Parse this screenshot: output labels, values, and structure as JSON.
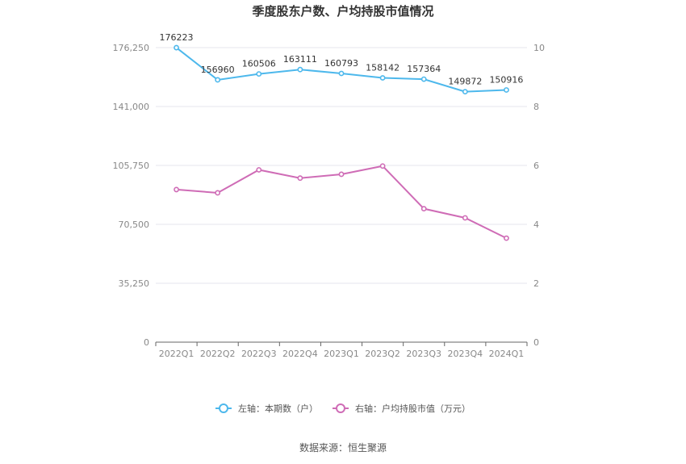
{
  "chart_data": {
    "type": "line",
    "title": "季度股东户数、户均持股市值情况",
    "categories": [
      "2022Q1",
      "2022Q2",
      "2022Q3",
      "2022Q4",
      "2023Q1",
      "2023Q2",
      "2023Q3",
      "2023Q4",
      "2024Q1"
    ],
    "left_axis": {
      "ticks": [
        "0",
        "35,250",
        "70,500",
        "105,750",
        "141,000",
        "176,250"
      ],
      "ylim": [
        0,
        176250
      ]
    },
    "right_axis": {
      "ticks": [
        "0",
        "2",
        "4",
        "6",
        "8",
        "10"
      ],
      "ylim": [
        0,
        10
      ]
    },
    "series": [
      {
        "name": "左轴：本期数（户）",
        "axis": "left",
        "color": "#4db8ec",
        "values": [
          176223,
          156960,
          160506,
          163111,
          160793,
          158142,
          157364,
          149872,
          150916
        ],
        "labels": [
          "176223",
          "156960",
          "160506",
          "163111",
          "160793",
          "158142",
          "157364",
          "149872",
          "150916"
        ]
      },
      {
        "name": "右轴：户均持股市值（万元）",
        "axis": "right",
        "color": "#cf6cb6",
        "values": [
          5.18,
          5.07,
          5.85,
          5.57,
          5.7,
          5.98,
          4.53,
          4.22,
          3.53
        ]
      }
    ],
    "grid": true,
    "legend": "bottom"
  },
  "footer": {
    "source": "数据来源：恒生聚源"
  }
}
